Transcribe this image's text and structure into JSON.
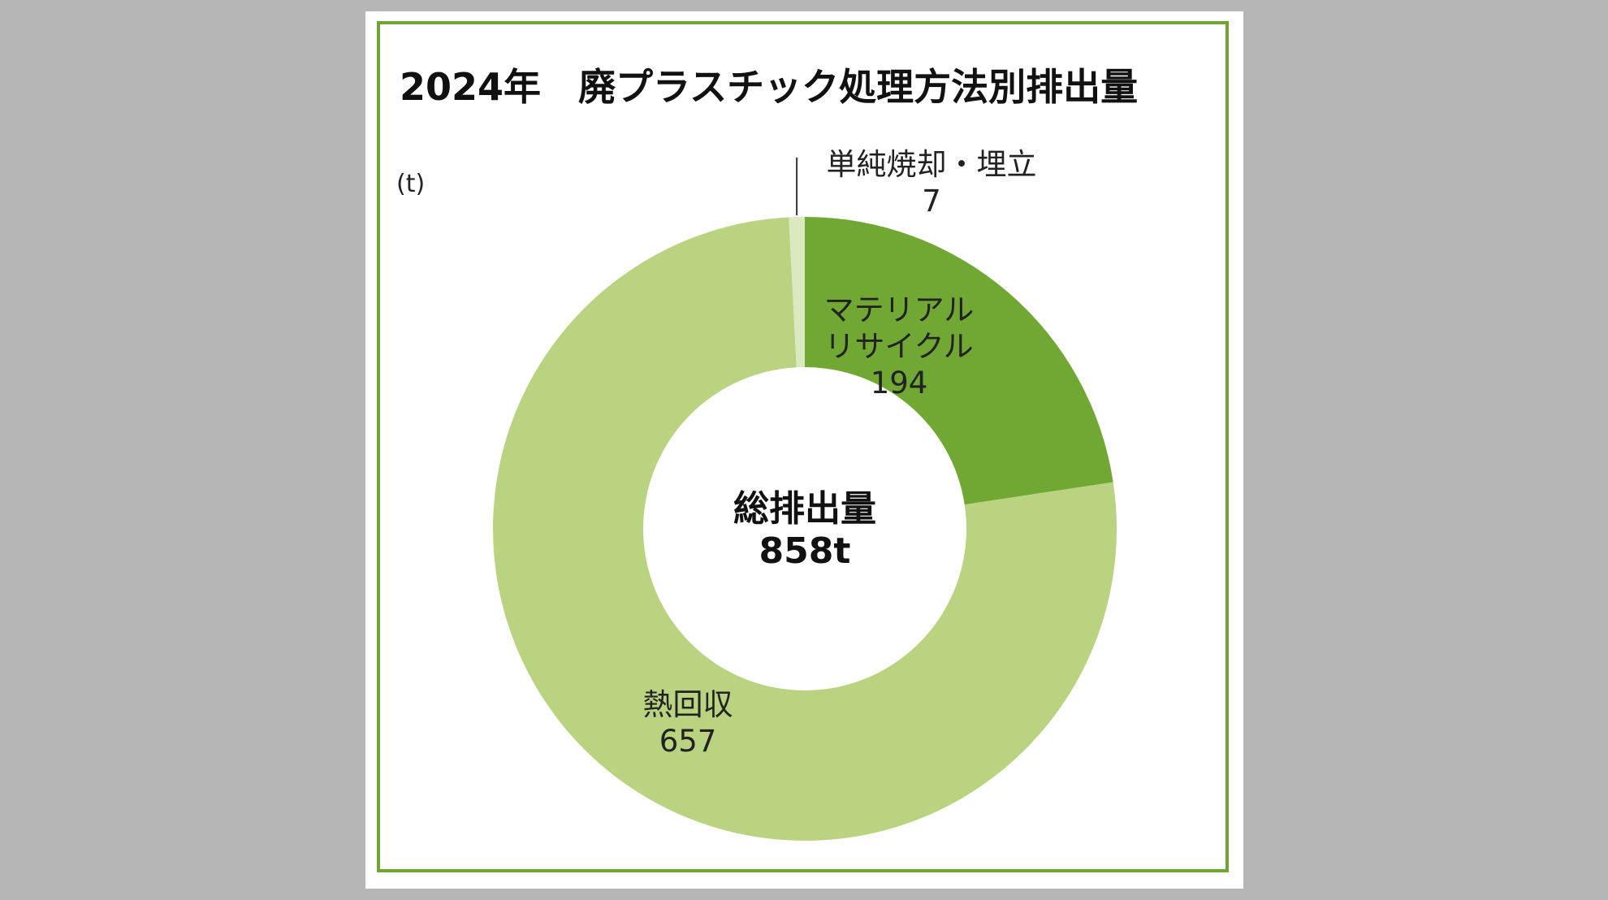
{
  "chart_data": {
    "type": "pie",
    "variant": "donut",
    "title": "2024年　廃プラスチック処理方法別排出量",
    "unit_label": "(t)",
    "center": {
      "line1": "総排出量",
      "line2": "858t"
    },
    "slices": [
      {
        "name_lines": [
          "マテリアル",
          "リサイクル"
        ],
        "value": 194,
        "value_label": "194",
        "color": "#70a833"
      },
      {
        "name_lines": [
          "熱回収"
        ],
        "value": 657,
        "value_label": "657",
        "color": "#b9d381"
      },
      {
        "name_lines": [
          "単純焼却・埋立"
        ],
        "value": 7,
        "value_label": "7",
        "color": "#dbe9c1"
      }
    ],
    "frame_color": "#70a433",
    "legend": "none"
  }
}
